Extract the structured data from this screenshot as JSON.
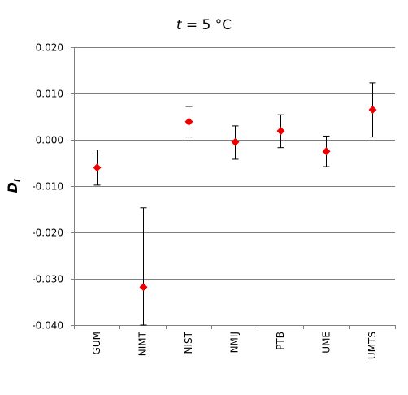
{
  "chart_data": {
    "type": "scatter",
    "title": {
      "var": "t",
      "rest": " = 5 °C"
    },
    "ylabel": {
      "main": "D",
      "sub": "i"
    },
    "xlabel": "",
    "categories": [
      "GUM",
      "NIMT",
      "NIST",
      "NMIJ",
      "PTB",
      "UME",
      "UMTS"
    ],
    "series": [
      {
        "values": [
          -0.006,
          -0.0318,
          0.0039,
          -0.0005,
          0.0019,
          -0.0025,
          0.0065
        ],
        "err_low": [
          -0.0098,
          -0.04,
          0.0006,
          -0.0042,
          -0.0017,
          -0.0058,
          0.0006
        ],
        "err_high": [
          -0.0022,
          -0.0147,
          0.0072,
          0.003,
          0.0054,
          0.0008,
          0.0123
        ]
      }
    ],
    "ylim": [
      -0.04,
      0.02
    ],
    "yticks": [
      -0.04,
      -0.03,
      -0.02,
      -0.01,
      0.0,
      0.01,
      0.02
    ],
    "ytick_labels": [
      "-0.040",
      "-0.030",
      "-0.020",
      "-0.010",
      "0.000",
      "0.010",
      "0.020"
    ],
    "grid": true,
    "legend": "none",
    "colors": {
      "marker": "#ee0000",
      "errorbar": "#000000",
      "grid": "#808080",
      "axis": "#808080"
    }
  }
}
